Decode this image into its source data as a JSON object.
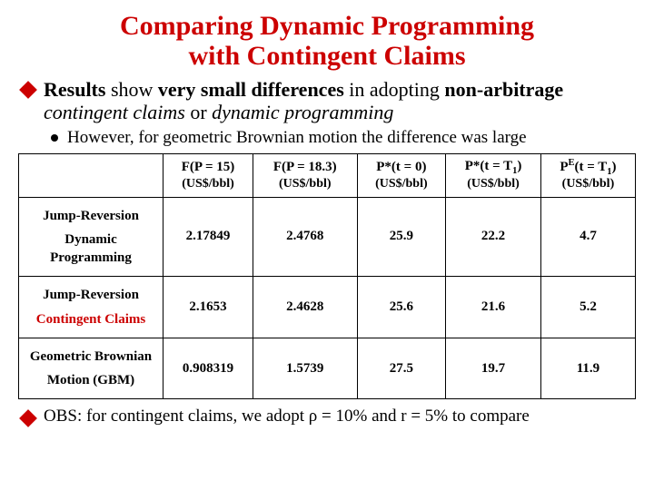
{
  "title_line1": "Comparing Dynamic Programming",
  "title_line2": "with Contingent Claims",
  "title_color": "#cc0000",
  "diamond_color": "#cc0000",
  "dot_color": "#000000",
  "bullet1_html": "<b>Results</b> show <b>very small differences</b> in adopting <b>non-arbitrage</b> <i>contingent claims</i> or <i>dynamic programming</i>",
  "sub1": "However, for geometric Brownian motion the difference was large",
  "table": {
    "headers": [
      "F(P = 15)",
      "F(P = 18.3)",
      "P*(t = 0)",
      "P*(t = T<sub>1</sub>)",
      "P<sup>E</sup>(t = T<sub>1</sub>)"
    ],
    "unit": "(US$/bbl)",
    "rows": [
      {
        "line1": "Jump-Reversion",
        "line2": "Dynamic Programming",
        "line2_color": "#000000",
        "values": [
          "2.17849",
          "2.4768",
          "25.9",
          "22.2",
          "4.7"
        ]
      },
      {
        "line1": "Jump-Reversion",
        "line2": "Contingent Claims",
        "line2_color": "#cc0000",
        "values": [
          "2.1653",
          "2.4628",
          "25.6",
          "21.6",
          "5.2"
        ]
      },
      {
        "line1": "Geometric Brownian",
        "line2": "Motion (GBM)",
        "line2_color": "#000000",
        "values": [
          "0.908319",
          "1.5739",
          "27.5",
          "19.7",
          "11.9"
        ]
      }
    ]
  },
  "footer_html": "OBS: for contingent claims, we adopt &rho; = 10% and r = 5% to compare"
}
